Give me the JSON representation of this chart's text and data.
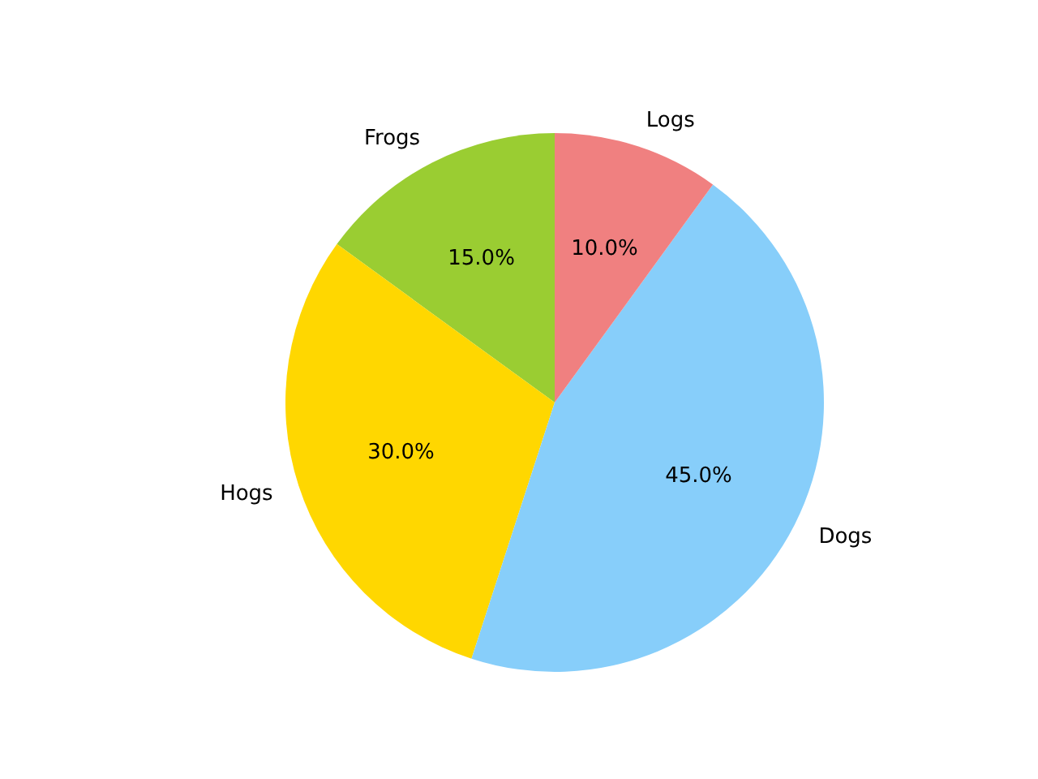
{
  "chart_data": {
    "type": "pie",
    "categories": [
      "Frogs",
      "Hogs",
      "Dogs",
      "Logs"
    ],
    "values": [
      15,
      30,
      45,
      10
    ],
    "colors": [
      "#9acd32",
      "#ffd700",
      "#87cefa",
      "#f08080"
    ],
    "value_labels": [
      "15.0%",
      "30.0%",
      "45.0%",
      "10.0%"
    ],
    "legend": false
  }
}
